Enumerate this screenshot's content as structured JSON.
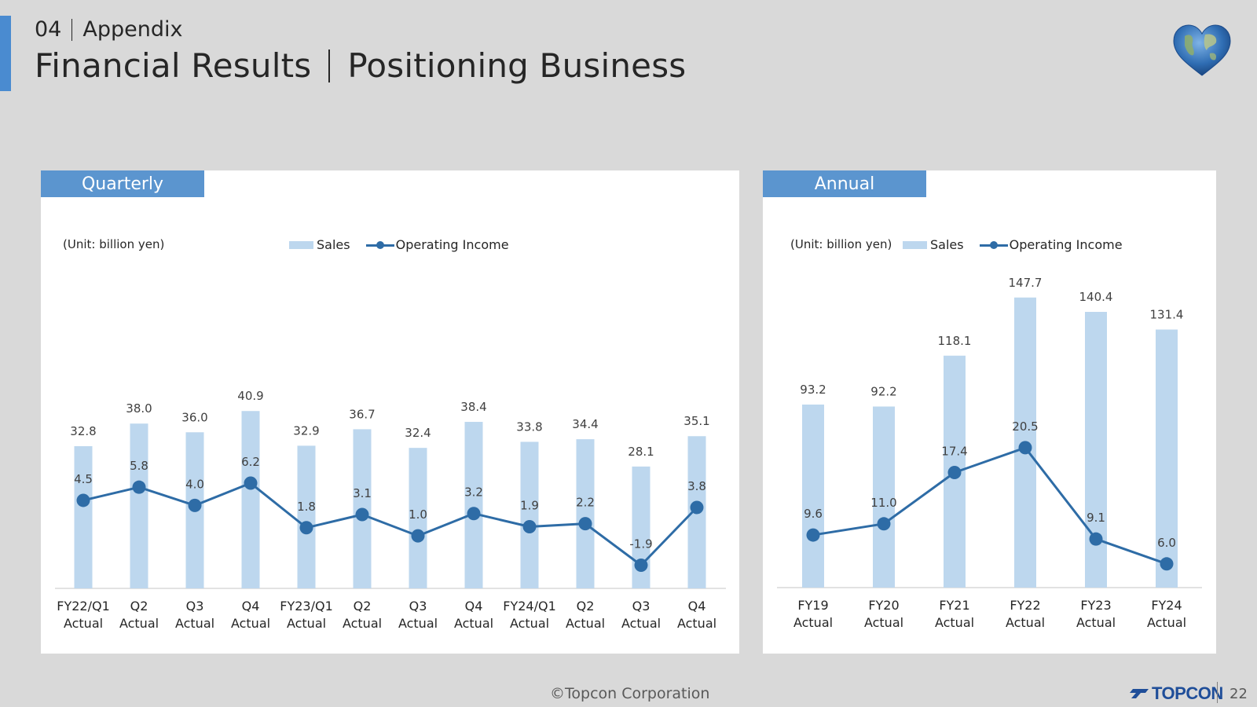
{
  "header": {
    "section_number": "04",
    "section_name": "Appendix",
    "title_left": "Financial Results",
    "title_right": "Positioning Business",
    "logo_icon": "globe-heart-icon"
  },
  "colors": {
    "accent": "#4a8bd0",
    "tab": "#5b95cf",
    "sales_bar": "#bdd7ee",
    "operating_income_line": "#2e6ca6"
  },
  "quarterly": {
    "tab_label": "Quarterly",
    "unit_label": "(Unit: billion yen)",
    "legend": {
      "sales": "Sales",
      "operating_income": "Operating Income"
    }
  },
  "annual": {
    "tab_label": "Annual",
    "unit_label": "(Unit: billion yen)",
    "legend": {
      "sales": "Sales",
      "operating_income": "Operating Income"
    }
  },
  "chart_data": [
    {
      "type": "bar",
      "panel": "Quarterly",
      "categories": [
        "FY22/Q1 Actual",
        "Q2 Actual",
        "Q3 Actual",
        "Q4 Actual",
        "FY23/Q1 Actual",
        "Q2 Actual",
        "Q3 Actual",
        "Q4 Actual",
        "FY24/Q1 Actual",
        "Q2 Actual",
        "Q3 Actual",
        "Q4 Actual"
      ],
      "category_lines": [
        [
          "FY22/Q1",
          "Actual"
        ],
        [
          "Q2",
          "Actual"
        ],
        [
          "Q3",
          "Actual"
        ],
        [
          "Q4",
          "Actual"
        ],
        [
          "FY23/Q1",
          "Actual"
        ],
        [
          "Q2",
          "Actual"
        ],
        [
          "Q3",
          "Actual"
        ],
        [
          "Q4",
          "Actual"
        ],
        [
          "FY24/Q1",
          "Actual"
        ],
        [
          "Q2",
          "Actual"
        ],
        [
          "Q3",
          "Actual"
        ],
        [
          "Q4",
          "Actual"
        ]
      ],
      "series": [
        {
          "name": "Sales",
          "kind": "bar",
          "values": [
            32.8,
            38.0,
            36.0,
            40.9,
            32.9,
            36.7,
            32.4,
            38.4,
            33.8,
            34.4,
            28.1,
            35.1
          ],
          "labels": [
            "32.8",
            "38.0",
            "36.0",
            "40.9",
            "32.9",
            "36.7",
            "32.4",
            "38.4",
            "33.8",
            "34.4",
            "28.1",
            "35.1"
          ]
        },
        {
          "name": "Operating Income",
          "kind": "line",
          "values": [
            4.5,
            5.8,
            4.0,
            6.2,
            1.8,
            3.1,
            1.0,
            3.2,
            1.9,
            2.2,
            -1.9,
            3.8
          ],
          "labels": [
            "4.5",
            "5.8",
            "4.0",
            "6.2",
            "1.8",
            "3.1",
            "1.0",
            "3.2",
            "1.9",
            "2.2",
            "-1.9",
            "3.8"
          ]
        }
      ],
      "grid": false,
      "legend_position": "top-center"
    },
    {
      "type": "bar",
      "panel": "Annual",
      "categories": [
        "FY19 Actual",
        "FY20 Actual",
        "FY21 Actual",
        "FY22 Actual",
        "FY23 Actual",
        "FY24 Actual"
      ],
      "category_lines": [
        [
          "FY19",
          "Actual"
        ],
        [
          "FY20",
          "Actual"
        ],
        [
          "FY21",
          "Actual"
        ],
        [
          "FY22",
          "Actual"
        ],
        [
          "FY23",
          "Actual"
        ],
        [
          "FY24",
          "Actual"
        ]
      ],
      "series": [
        {
          "name": "Sales",
          "kind": "bar",
          "values": [
            93.2,
            92.2,
            118.1,
            147.7,
            140.4,
            131.4
          ],
          "labels": [
            "93.2",
            "92.2",
            "118.1",
            "147.7",
            "140.4",
            "131.4"
          ]
        },
        {
          "name": "Operating Income",
          "kind": "line",
          "values": [
            9.6,
            11.0,
            17.4,
            20.5,
            9.1,
            6.0
          ],
          "labels": [
            "9.6",
            "11.0",
            "17.4",
            "20.5",
            "9.1",
            "6.0"
          ]
        }
      ],
      "grid": false,
      "legend_position": "top-center"
    }
  ],
  "footer": {
    "copyright": "©Topcon Corporation",
    "logo_text": "TOPCON",
    "page_number": "22"
  }
}
